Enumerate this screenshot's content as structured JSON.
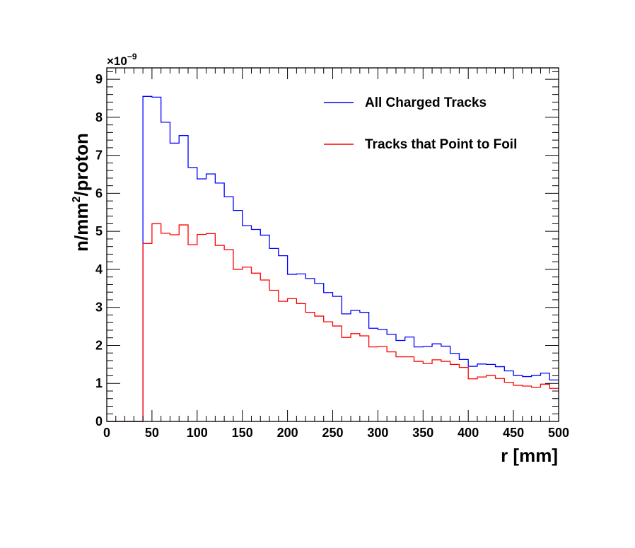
{
  "chart_data": {
    "type": "line",
    "style": "step-histogram",
    "x_label": "r [mm]",
    "y_label_main": "n/mm",
    "y_label_sup": "2",
    "y_label_rest": "/proton",
    "y_exponent_prefix": "×10",
    "y_exponent": "−9",
    "x_range": [
      0,
      500
    ],
    "y_range": [
      0,
      9.3
    ],
    "x_ticks": [
      0,
      50,
      100,
      150,
      200,
      250,
      300,
      350,
      400,
      450,
      500
    ],
    "x_tick_labels": [
      "0",
      "50",
      "100",
      "150",
      "200",
      "250",
      "300",
      "350",
      "400",
      "450",
      "500"
    ],
    "y_ticks": [
      0,
      1,
      2,
      3,
      4,
      5,
      6,
      7,
      8,
      9
    ],
    "y_tick_labels": [
      "0",
      "1",
      "2",
      "3",
      "4",
      "5",
      "6",
      "7",
      "8",
      "9"
    ],
    "bin_edges": [
      0,
      10,
      20,
      30,
      40,
      50,
      60,
      70,
      80,
      90,
      100,
      110,
      120,
      130,
      140,
      150,
      160,
      170,
      180,
      190,
      200,
      210,
      220,
      230,
      240,
      250,
      260,
      270,
      280,
      290,
      300,
      310,
      320,
      330,
      340,
      350,
      360,
      370,
      380,
      390,
      400,
      410,
      420,
      430,
      440,
      450,
      460,
      470,
      480,
      490,
      500
    ],
    "legend_position": "top-right",
    "series": [
      {
        "name": "All Charged Tracks",
        "color": "#0000ff",
        "values": [
          0,
          0,
          0,
          0,
          8.55,
          8.53,
          7.87,
          7.32,
          7.52,
          6.68,
          6.38,
          6.51,
          6.27,
          5.91,
          5.55,
          5.15,
          5.05,
          4.9,
          4.55,
          4.36,
          3.87,
          3.88,
          3.76,
          3.63,
          3.39,
          3.29,
          2.83,
          2.92,
          2.87,
          2.45,
          2.42,
          2.29,
          2.13,
          2.22,
          1.96,
          1.97,
          2.04,
          1.98,
          1.79,
          1.63,
          1.45,
          1.51,
          1.5,
          1.44,
          1.33,
          1.21,
          1.18,
          1.21,
          1.27,
          1.09
        ]
      },
      {
        "name": "Tracks that Point to Foil",
        "color": "#ff0000",
        "values": [
          0,
          0,
          0,
          0,
          4.68,
          5.2,
          4.95,
          4.91,
          5.17,
          4.65,
          4.92,
          4.94,
          4.63,
          4.52,
          4.0,
          4.06,
          3.9,
          3.72,
          3.45,
          3.16,
          3.23,
          3.1,
          2.87,
          2.77,
          2.62,
          2.51,
          2.21,
          2.31,
          2.25,
          1.96,
          1.97,
          1.83,
          1.7,
          1.7,
          1.58,
          1.52,
          1.62,
          1.58,
          1.5,
          1.42,
          1.12,
          1.17,
          1.21,
          1.13,
          1.03,
          0.95,
          0.93,
          0.9,
          0.98,
          0.87
        ]
      }
    ]
  }
}
